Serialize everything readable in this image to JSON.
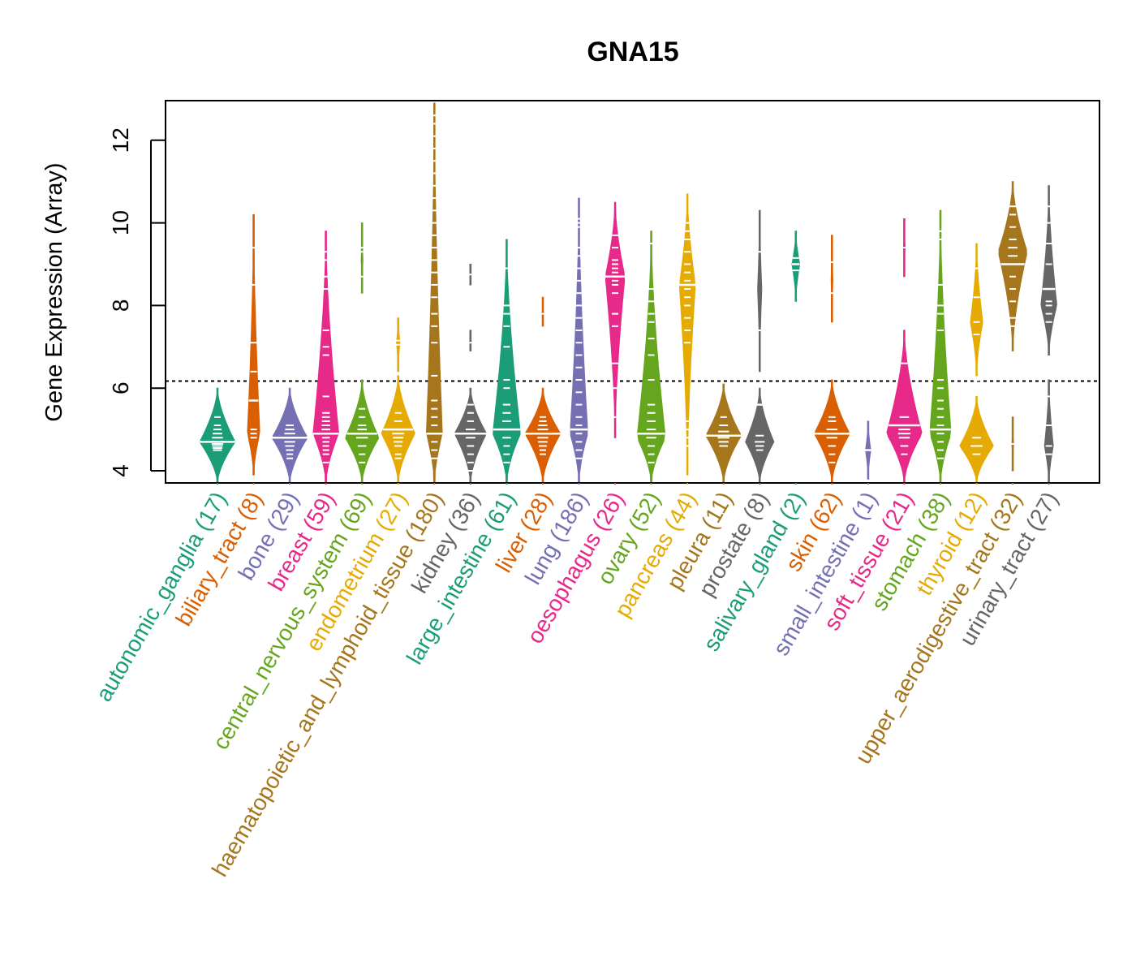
{
  "chart_data": {
    "type": "beanplot",
    "title": "GNA15",
    "xlabel": "",
    "ylabel": "Gene Expression (Array)",
    "ylim": [
      3.7,
      13.0
    ],
    "yticks": [
      4,
      6,
      8,
      10,
      12
    ],
    "reference_line": 6.17,
    "grid": false,
    "legend": "none",
    "groups": [
      {
        "name": "autonomic_ganglia",
        "n": 17,
        "color": "#1B9E77",
        "median": 4.7,
        "beans": [
          [
            3.7,
            6.0,
            4.7,
            1.0
          ]
        ],
        "points": [
          4.5,
          4.55,
          4.6,
          4.65,
          4.7,
          4.8,
          4.9,
          5.0,
          5.1,
          5.3,
          4.5
        ]
      },
      {
        "name": "biliary_tract",
        "n": 8,
        "color": "#D95F02",
        "median": 5.7,
        "beans": [
          [
            3.9,
            10.2,
            4.9,
            0.35
          ]
        ],
        "points": [
          4.8,
          4.9,
          5.0,
          5.7,
          6.4,
          7.1,
          8.5,
          9.4
        ]
      },
      {
        "name": "bone",
        "n": 29,
        "color": "#7570B3",
        "median": 4.8,
        "beans": [
          [
            3.7,
            6.0,
            4.8,
            1.0
          ]
        ],
        "points": [
          4.3,
          4.4,
          4.5,
          4.6,
          4.7,
          4.8,
          4.9,
          5.0,
          5.1
        ]
      },
      {
        "name": "breast",
        "n": 59,
        "color": "#E7298A",
        "median": 4.9,
        "beans": [
          [
            3.7,
            9.8,
            4.9,
            0.72
          ]
        ],
        "points": [
          4.2,
          4.4,
          4.5,
          4.6,
          4.7,
          4.8,
          4.9,
          5.0,
          5.1,
          5.2,
          5.3,
          5.4,
          5.8,
          6.8,
          7.0,
          7.4,
          8.4,
          8.7,
          9.1,
          9.3
        ]
      },
      {
        "name": "central_nervous_system",
        "n": 69,
        "color": "#66A61E",
        "median": 4.9,
        "beans": [
          [
            3.7,
            6.2,
            4.8,
            0.95
          ],
          [
            8.3,
            10.0,
            9.1,
            0.05
          ]
        ],
        "points": [
          4.2,
          4.4,
          4.6,
          4.8,
          4.9,
          5.0,
          5.1,
          5.3,
          5.5,
          8.7,
          9.3,
          9.4
        ]
      },
      {
        "name": "endometrium",
        "n": 27,
        "color": "#E6AB02",
        "median": 5.0,
        "beans": [
          [
            3.7,
            6.3,
            4.9,
            0.95
          ],
          [
            6.4,
            7.7,
            7.1,
            0.1
          ]
        ],
        "points": [
          4.3,
          4.4,
          4.6,
          4.7,
          4.8,
          4.9,
          5.0,
          5.2,
          5.4,
          7.05,
          7.15
        ]
      },
      {
        "name": "haematopoietic_and_lymphoid_tissue",
        "n": 180,
        "color": "#A6761D",
        "median": 4.9,
        "beans": [
          [
            3.7,
            12.9,
            4.9,
            0.45
          ]
        ],
        "points": [
          4.3,
          4.5,
          4.7,
          4.9,
          5.1,
          5.3,
          5.5,
          5.7,
          6.3,
          7.1,
          7.5,
          7.8,
          8.2,
          8.5,
          8.8,
          9.1,
          9.4,
          9.7,
          10.0,
          10.3,
          10.6,
          10.9,
          11.2,
          11.5,
          11.8,
          12.1,
          12.4,
          12.6
        ]
      },
      {
        "name": "kidney",
        "n": 36,
        "color": "#666666",
        "median": 4.9,
        "beans": [
          [
            3.7,
            6.0,
            4.9,
            0.9
          ],
          [
            6.9,
            7.4,
            7.1,
            0.05
          ],
          [
            8.5,
            9.0,
            8.75,
            0.05
          ]
        ],
        "points": [
          4.0,
          4.2,
          4.4,
          4.6,
          4.8,
          5.0,
          5.2,
          5.4,
          5.6,
          7.1,
          8.75
        ]
      },
      {
        "name": "large_intestine",
        "n": 61,
        "color": "#1B9E77",
        "median": 5.0,
        "beans": [
          [
            3.7,
            9.6,
            4.9,
            0.78
          ]
        ],
        "points": [
          4.2,
          4.4,
          4.6,
          4.8,
          5.0,
          5.2,
          5.4,
          5.6,
          6.0,
          6.2,
          7.0,
          7.5,
          7.8,
          8.0,
          8.9
        ]
      },
      {
        "name": "liver",
        "n": 28,
        "color": "#D95F02",
        "median": 4.9,
        "beans": [
          [
            3.7,
            6.0,
            4.9,
            1.0
          ],
          [
            7.5,
            8.2,
            7.8,
            0.05
          ]
        ],
        "points": [
          4.4,
          4.5,
          4.6,
          4.7,
          4.8,
          5.0,
          5.1,
          5.2,
          5.3,
          7.8
        ]
      },
      {
        "name": "lung",
        "n": 186,
        "color": "#7570B3",
        "median": 5.0,
        "beans": [
          [
            3.7,
            10.6,
            4.9,
            0.5
          ]
        ],
        "points": [
          4.3,
          4.5,
          4.7,
          4.9,
          5.1,
          5.3,
          5.6,
          5.9,
          6.2,
          6.5,
          6.8,
          7.1,
          7.4,
          7.7,
          8.0,
          8.3,
          8.6,
          8.9,
          9.2,
          9.4,
          9.9,
          10.0,
          10.1
        ]
      },
      {
        "name": "oesophagus",
        "n": 26,
        "color": "#E7298A",
        "median": 8.7,
        "beans": [
          [
            4.8,
            10.5,
            8.7,
            0.55
          ]
        ],
        "points": [
          5.3,
          6.0,
          6.6,
          7.5,
          7.8,
          8.3,
          8.5,
          8.6,
          8.7,
          8.8,
          8.9,
          9.0,
          9.1,
          9.4,
          9.7
        ]
      },
      {
        "name": "ovary",
        "n": 52,
        "color": "#66A61E",
        "median": 4.9,
        "beans": [
          [
            3.7,
            9.8,
            4.8,
            0.8
          ]
        ],
        "points": [
          4.2,
          4.4,
          4.6,
          4.8,
          5.0,
          5.2,
          5.4,
          5.6,
          6.2,
          6.8,
          7.2,
          7.6,
          7.8,
          8.1,
          8.4,
          9.5
        ]
      },
      {
        "name": "pancreas",
        "n": 44,
        "color": "#E6AB02",
        "median": 8.5,
        "beans": [
          [
            3.9,
            10.7,
            8.5,
            0.45
          ]
        ],
        "points": [
          4.6,
          4.8,
          5.0,
          5.2,
          7.1,
          7.4,
          7.7,
          8.0,
          8.2,
          8.4,
          8.6,
          8.8,
          9.0,
          9.3,
          9.6,
          9.8,
          10.0
        ]
      },
      {
        "name": "pleura",
        "n": 11,
        "color": "#A6761D",
        "median": 4.85,
        "beans": [
          [
            3.7,
            6.1,
            4.85,
            1.0
          ]
        ],
        "points": [
          4.6,
          4.7,
          4.8,
          4.95,
          5.1,
          5.3
        ]
      },
      {
        "name": "prostate",
        "n": 8,
        "color": "#666666",
        "median": 5.6,
        "beans": [
          [
            3.7,
            6.0,
            4.7,
            0.8
          ],
          [
            6.4,
            10.3,
            8.4,
            0.12
          ]
        ],
        "points": [
          4.5,
          4.6,
          4.7,
          4.85,
          7.4,
          9.3
        ]
      },
      {
        "name": "salivary_gland",
        "n": 2,
        "color": "#1B9E77",
        "median": 9.0,
        "beans": [
          [
            8.1,
            9.8,
            9.0,
            0.22
          ]
        ],
        "points": [
          8.85,
          9.15
        ]
      },
      {
        "name": "skin",
        "n": 62,
        "color": "#D95F02",
        "median": 4.9,
        "beans": [
          [
            3.7,
            6.2,
            4.9,
            1.0
          ],
          [
            7.6,
            9.7,
            8.6,
            0.05
          ]
        ],
        "points": [
          4.2,
          4.4,
          4.6,
          4.8,
          5.0,
          5.2,
          5.3,
          8.3,
          9.05
        ]
      },
      {
        "name": "small_intestine",
        "n": 1,
        "color": "#7570B3",
        "median": 4.5,
        "beans": [
          [
            3.8,
            5.2,
            4.5,
            0.15
          ]
        ],
        "points": [
          4.5
        ]
      },
      {
        "name": "soft_tissue",
        "n": 21,
        "color": "#E7298A",
        "median": 5.1,
        "beans": [
          [
            3.7,
            7.4,
            4.9,
            1.0
          ],
          [
            8.7,
            10.1,
            9.4,
            0.05
          ]
        ],
        "points": [
          4.4,
          4.6,
          4.8,
          4.9,
          5.0,
          5.3,
          6.6,
          9.4
        ]
      },
      {
        "name": "stomach",
        "n": 38,
        "color": "#66A61E",
        "median": 5.0,
        "beans": [
          [
            3.7,
            10.3,
            4.9,
            0.6
          ]
        ],
        "points": [
          4.3,
          4.5,
          4.7,
          4.9,
          5.1,
          5.3,
          5.5,
          5.7,
          6.0,
          6.2,
          7.4,
          7.8,
          8.0,
          8.5,
          9.6,
          9.8
        ]
      },
      {
        "name": "thyroid",
        "n": 12,
        "color": "#E6AB02",
        "median": 6.2,
        "beans": [
          [
            3.7,
            5.8,
            4.6,
            0.95
          ],
          [
            6.3,
            9.5,
            7.6,
            0.35
          ]
        ],
        "points": [
          4.4,
          4.6,
          4.8,
          7.3,
          7.6,
          8.2,
          8.9
        ]
      },
      {
        "name": "upper_aerodigestive_tract",
        "n": 32,
        "color": "#A6761D",
        "median": 9.0,
        "beans": [
          [
            6.9,
            11.0,
            9.3,
            0.82
          ],
          [
            4.0,
            5.3,
            4.65,
            0.05
          ]
        ],
        "points": [
          7.5,
          7.7,
          8.1,
          8.4,
          8.7,
          9.0,
          9.2,
          9.4,
          9.6,
          9.9,
          10.2,
          10.4,
          4.65
        ]
      },
      {
        "name": "urinary_tract",
        "n": 27,
        "color": "#666666",
        "median": 8.4,
        "beans": [
          [
            6.8,
            10.9,
            8.0,
            0.45
          ],
          [
            3.7,
            6.2,
            4.6,
            0.25
          ]
        ],
        "points": [
          7.6,
          7.8,
          8.0,
          8.1,
          8.4,
          9.0,
          9.5,
          10.0,
          10.4,
          4.4,
          4.6,
          5.1,
          5.8
        ]
      }
    ]
  }
}
